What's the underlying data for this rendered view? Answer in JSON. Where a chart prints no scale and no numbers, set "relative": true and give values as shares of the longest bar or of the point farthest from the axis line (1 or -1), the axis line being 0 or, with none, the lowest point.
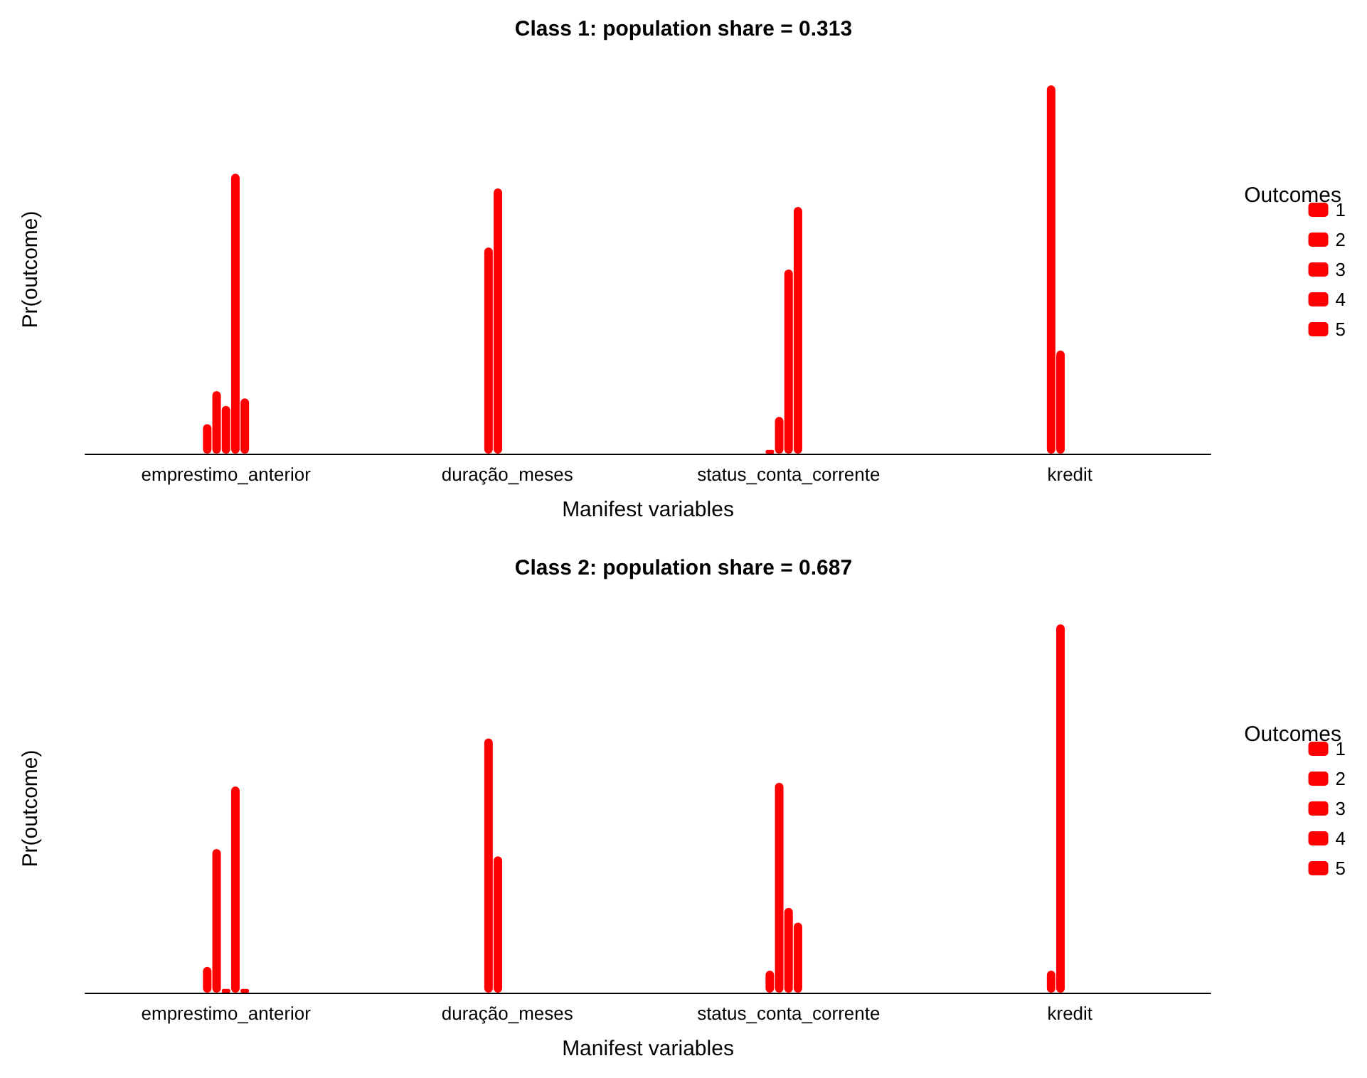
{
  "chart_data": [
    {
      "type": "bar",
      "title": "Class 1: population share = 0.313",
      "xlabel": "Manifest variables",
      "ylabel": "Pr(outcome)",
      "legend_title": "Outcomes",
      "relative": true,
      "legend": "right",
      "grid": false,
      "categories": [
        "emprestimo_anterior",
        "duração_meses",
        "status_conta_corrente",
        "kredit"
      ],
      "series": [
        {
          "name": "1",
          "color": "#ff0000",
          "values": [
            0.08,
            0.56,
            0.01,
            1
          ]
        },
        {
          "name": "2",
          "color": "#ff0000",
          "values": [
            0.17,
            0.72,
            0.1,
            0.28
          ]
        },
        {
          "name": "3",
          "color": "#ff0000",
          "values": [
            0.13,
            null,
            0.5,
            null
          ]
        },
        {
          "name": "4",
          "color": "#ff0000",
          "values": [
            0.76,
            null,
            0.67,
            null
          ]
        },
        {
          "name": "5",
          "color": "#ff0000",
          "values": [
            0.15,
            null,
            null,
            null
          ]
        }
      ]
    },
    {
      "type": "bar",
      "title": "Class 2: population share = 0.687",
      "xlabel": "Manifest variables",
      "ylabel": "Pr(outcome)",
      "legend_title": "Outcomes",
      "relative": true,
      "legend": "right",
      "grid": false,
      "categories": [
        "emprestimo_anterior",
        "duração_meses",
        "status_conta_corrente",
        "kredit"
      ],
      "series": [
        {
          "name": "1",
          "color": "#ff0000",
          "values": [
            0.07,
            0.69,
            0.06,
            0.06
          ]
        },
        {
          "name": "2",
          "color": "#ff0000",
          "values": [
            0.39,
            0.37,
            0.57,
            1
          ]
        },
        {
          "name": "3",
          "color": "#ff0000",
          "values": [
            0.01,
            null,
            0.23,
            null
          ]
        },
        {
          "name": "4",
          "color": "#ff0000",
          "values": [
            0.56,
            null,
            0.19,
            null
          ]
        },
        {
          "name": "5",
          "color": "#ff0000",
          "values": [
            0.01,
            null,
            null,
            null
          ]
        }
      ]
    }
  ]
}
